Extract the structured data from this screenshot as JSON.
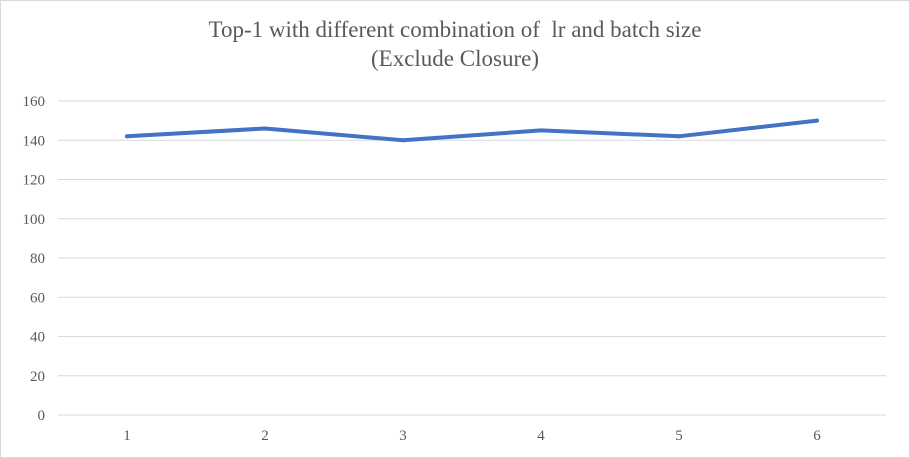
{
  "chart_data": {
    "type": "line",
    "title_line1": "Top-1 with different combination of  lr and batch size",
    "title_line2": "(Exclude Closure)",
    "xlabel": "",
    "ylabel": "",
    "categories": [
      "1",
      "2",
      "3",
      "4",
      "5",
      "6"
    ],
    "series": [
      {
        "values": [
          142,
          146,
          140,
          145,
          142,
          150
        ]
      }
    ],
    "ylim": [
      0,
      160
    ],
    "yticks": [
      "0",
      "20",
      "40",
      "60",
      "80",
      "100",
      "120",
      "140",
      "160"
    ],
    "grid": true,
    "legend": "none",
    "colors": {
      "line": "#4472c4",
      "grid": "#d9d9d9",
      "text": "#595959"
    }
  }
}
